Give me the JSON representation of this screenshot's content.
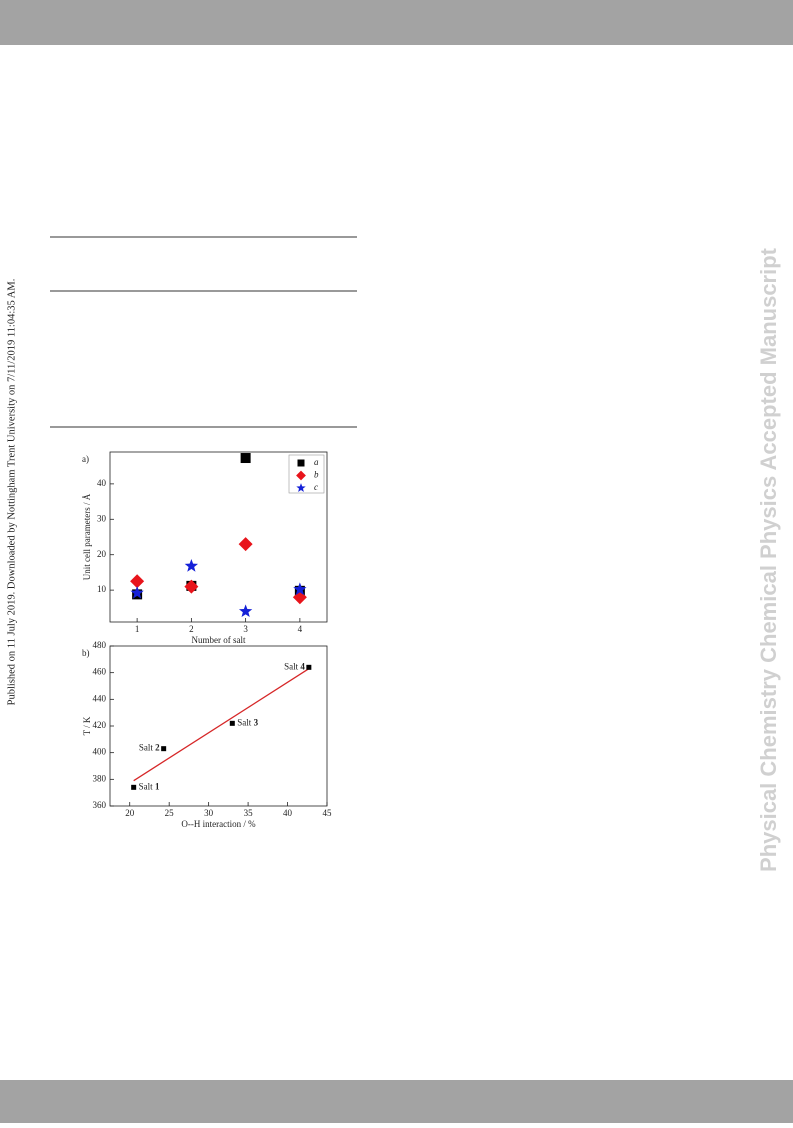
{
  "side_note": "Published on 11 July 2019. Downloaded by Nottingham Trent University on 7/11/2019 11:04:35 AM.",
  "watermark": "Physical Chemistry Chemical Physics Accepted Manuscript",
  "chart_data": [
    {
      "type": "scatter",
      "panel_label": "a)",
      "xlabel": "Number of salt",
      "ylabel": "Unit cell parameters / Å",
      "x": [
        1,
        2,
        3,
        4
      ],
      "xlim": [
        0.5,
        4.5
      ],
      "xticks": [
        1,
        2,
        3,
        4
      ],
      "ylim": [
        1,
        49
      ],
      "yticks": [
        10,
        20,
        30,
        40
      ],
      "legend": "upper right",
      "series": [
        {
          "name": "a",
          "color": "#000000",
          "marker": "square",
          "values": [
            8.8,
            11.2,
            47.3,
            9.8
          ]
        },
        {
          "name": "b",
          "color": "#e8141b",
          "marker": "diamond",
          "values": [
            12.5,
            11,
            23,
            8
          ]
        },
        {
          "name": "c",
          "color": "#1521d8",
          "marker": "star",
          "values": [
            9.2,
            16.8,
            4,
            10.2
          ]
        }
      ]
    },
    {
      "type": "scatter",
      "panel_label": "b)",
      "xlabel": "O--H interaction / %",
      "ylabel": "T / K",
      "x": [
        20.5,
        24.3,
        33,
        42.7
      ],
      "xlim": [
        17.5,
        45
      ],
      "xticks": [
        20,
        25,
        30,
        35,
        40,
        45
      ],
      "ylim": [
        360,
        480
      ],
      "yticks": [
        360,
        380,
        400,
        420,
        440,
        460,
        480
      ],
      "series": [
        {
          "color": "#000000",
          "marker": "small-square",
          "values": [
            374,
            403,
            422,
            464
          ],
          "point_labels": [
            [
              "Salt",
              "1"
            ],
            [
              "Salt",
              "2"
            ],
            [
              "Salt",
              "3"
            ],
            [
              "Salt",
              "4"
            ]
          ]
        }
      ],
      "fit": {
        "color": "#d62728",
        "x": [
          20.5,
          42.7
        ],
        "values": [
          379,
          463
        ]
      }
    }
  ]
}
